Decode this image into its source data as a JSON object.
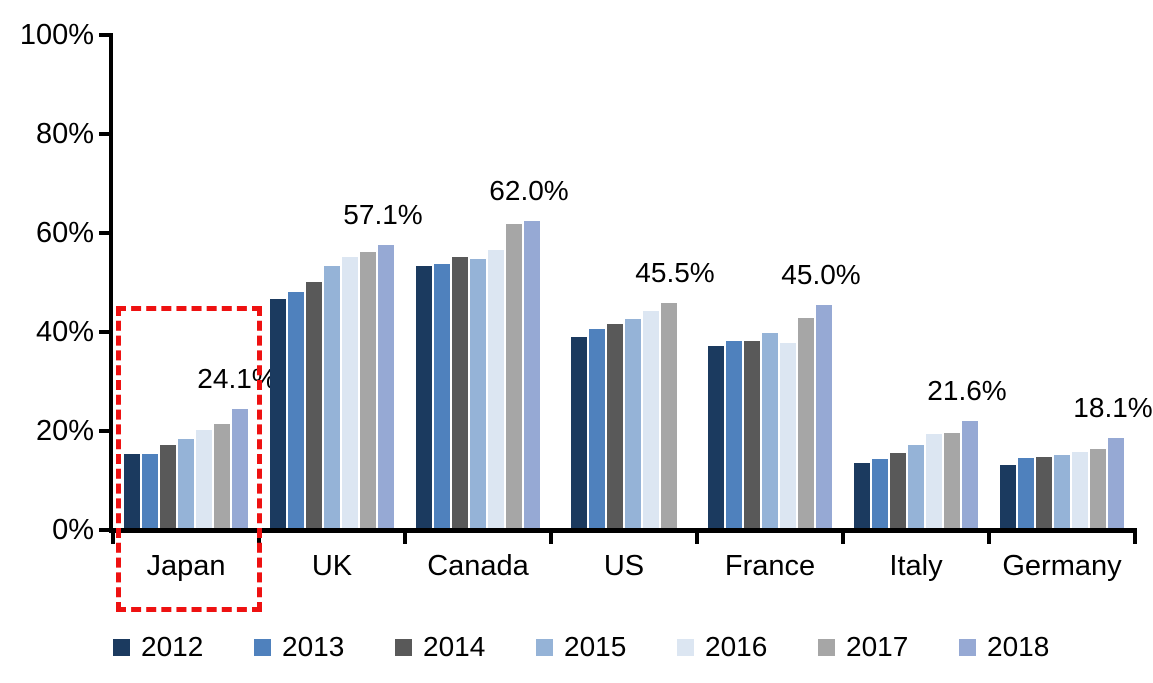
{
  "chart_data": {
    "type": "bar",
    "title": "",
    "xlabel": "",
    "ylabel": "",
    "ylim": [
      0,
      100
    ],
    "grid": "off",
    "legend_position": "bottom",
    "yticks": [
      0,
      20,
      40,
      60,
      80,
      100
    ],
    "ytick_labels": [
      "0%",
      "20%",
      "40%",
      "60%",
      "80%",
      "100%"
    ],
    "categories": [
      "Japan",
      "UK",
      "Canada",
      "US",
      "France",
      "Italy",
      "Germany"
    ],
    "series": [
      {
        "name": "2012",
        "color": "#1B3A5F",
        "values": [
          14.9,
          46.3,
          53.0,
          38.5,
          36.7,
          13.2,
          12.7
        ]
      },
      {
        "name": "2013",
        "color": "#4F81BD",
        "values": [
          15.0,
          47.7,
          53.3,
          40.3,
          37.7,
          14.0,
          14.1
        ]
      },
      {
        "name": "2014",
        "color": "#595959",
        "values": [
          16.7,
          49.7,
          54.8,
          41.2,
          37.8,
          15.2,
          14.3
        ]
      },
      {
        "name": "2015",
        "color": "#95B3D7",
        "values": [
          18.0,
          52.9,
          54.4,
          42.2,
          39.4,
          16.8,
          14.7
        ]
      },
      {
        "name": "2016",
        "color": "#DCE6F2",
        "values": [
          19.8,
          54.7,
          56.1,
          43.8,
          37.4,
          19.0,
          15.3
        ]
      },
      {
        "name": "2017",
        "color": "#A6A6A6",
        "values": [
          21.1,
          55.7,
          61.5,
          45.5,
          42.5,
          19.2,
          15.9
        ]
      },
      {
        "name": "2018",
        "color": "#96A9D4",
        "values": [
          24.1,
          57.1,
          62.0,
          null,
          45.0,
          21.6,
          18.1
        ]
      }
    ],
    "value_labels": [
      "24.1%",
      "57.1%",
      "62.0%",
      "45.5%",
      "45.0%",
      "21.6%",
      "18.1%"
    ],
    "legend": [
      "2012",
      "2013",
      "2014",
      "2015",
      "2016",
      "2017",
      "2018"
    ],
    "highlight": {
      "category": "Japan",
      "style": "dashed-box",
      "color": "#EE1111"
    }
  },
  "colors": {
    "axis": "#000000",
    "background": "#FFFFFF"
  }
}
